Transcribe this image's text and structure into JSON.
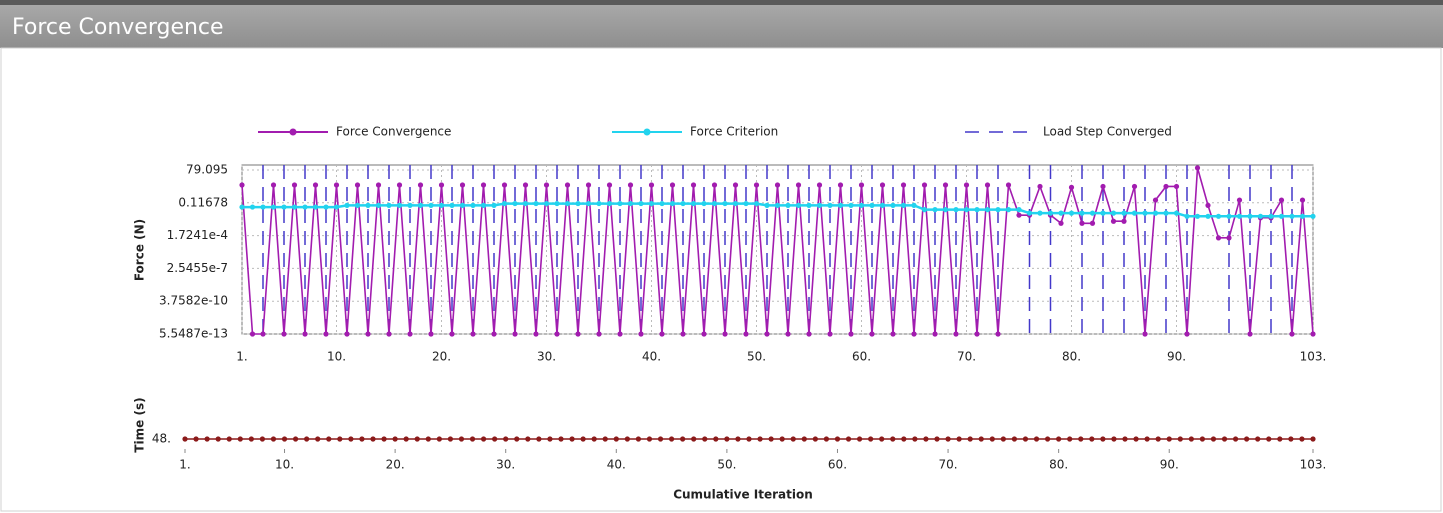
{
  "panel": {
    "title": "Force Convergence"
  },
  "chart_data": [
    {
      "type": "line",
      "y_label": "Force (N)",
      "log_y": true,
      "grid": true,
      "legend": "top",
      "x": [
        1,
        2,
        3,
        4,
        5,
        6,
        7,
        8,
        9,
        10,
        11,
        12,
        13,
        14,
        15,
        16,
        17,
        18,
        19,
        20,
        21,
        22,
        23,
        24,
        25,
        26,
        27,
        28,
        29,
        30,
        31,
        32,
        33,
        34,
        35,
        36,
        37,
        38,
        39,
        40,
        41,
        42,
        43,
        44,
        45,
        46,
        47,
        48,
        49,
        50,
        51,
        52,
        53,
        54,
        55,
        56,
        57,
        58,
        59,
        60,
        61,
        62,
        63,
        64,
        65,
        66,
        67,
        68,
        69,
        70,
        71,
        72,
        73,
        74,
        75,
        76,
        77,
        78,
        79,
        80,
        81,
        82,
        83,
        84,
        85,
        86,
        87,
        88,
        89,
        90,
        91,
        92,
        93,
        94,
        95,
        96,
        97,
        98,
        99,
        100,
        101,
        102,
        103
      ],
      "series": [
        {
          "name": "Force Convergence",
          "color": "#a21caf",
          "values": [
            4,
            5.5487e-13,
            5.5487e-13,
            4,
            5.5487e-13,
            4,
            5.5487e-13,
            4,
            5.5487e-13,
            4,
            5.5487e-13,
            4,
            5.5487e-13,
            4,
            5.5487e-13,
            4,
            5.5487e-13,
            4,
            5.5487e-13,
            4,
            5.5487e-13,
            4,
            5.5487e-13,
            4,
            5.5487e-13,
            4,
            5.5487e-13,
            4,
            5.5487e-13,
            4,
            5.5487e-13,
            4,
            5.5487e-13,
            4,
            5.5487e-13,
            4,
            5.5487e-13,
            4,
            5.5487e-13,
            4,
            5.5487e-13,
            4,
            5.5487e-13,
            4,
            5.5487e-13,
            4,
            5.5487e-13,
            4,
            5.5487e-13,
            4,
            5.5487e-13,
            4,
            5.5487e-13,
            4,
            5.5487e-13,
            4,
            5.5487e-13,
            4,
            5.5487e-13,
            4,
            5.5487e-13,
            4,
            5.5487e-13,
            4,
            5.5487e-13,
            4,
            5.5487e-13,
            4,
            5.5487e-13,
            4,
            5.5487e-13,
            4,
            5.5487e-13,
            4,
            0.01,
            0.01,
            3,
            0.01,
            0.002,
            2.5,
            0.002,
            0.002,
            3,
            0.003,
            0.003,
            3,
            5.5487e-13,
            0.2,
            3,
            3,
            5.5487e-13,
            120,
            0.07,
            0.00011,
            0.00011,
            0.2,
            5.5487e-13,
            0.006,
            0.006,
            0.2,
            5.5487e-13,
            0.2,
            5.5487e-13
          ]
        },
        {
          "name": "Force Criterion",
          "color": "#22d3ee",
          "values": [
            0.05,
            0.05,
            0.05,
            0.05,
            0.05,
            0.05,
            0.05,
            0.05,
            0.05,
            0.05,
            0.07,
            0.07,
            0.07,
            0.07,
            0.07,
            0.07,
            0.07,
            0.07,
            0.07,
            0.07,
            0.07,
            0.07,
            0.07,
            0.07,
            0.07,
            0.1,
            0.1,
            0.1,
            0.1,
            0.1,
            0.1,
            0.1,
            0.1,
            0.1,
            0.1,
            0.1,
            0.1,
            0.1,
            0.1,
            0.1,
            0.1,
            0.1,
            0.1,
            0.1,
            0.1,
            0.1,
            0.1,
            0.1,
            0.1,
            0.1,
            0.07,
            0.07,
            0.07,
            0.07,
            0.07,
            0.07,
            0.07,
            0.07,
            0.07,
            0.07,
            0.07,
            0.07,
            0.07,
            0.07,
            0.07,
            0.03,
            0.03,
            0.03,
            0.03,
            0.03,
            0.03,
            0.03,
            0.03,
            0.03,
            0.03,
            0.015,
            0.015,
            0.015,
            0.015,
            0.015,
            0.015,
            0.015,
            0.015,
            0.015,
            0.015,
            0.015,
            0.015,
            0.015,
            0.015,
            0.015,
            0.008,
            0.008,
            0.008,
            0.008,
            0.008,
            0.008,
            0.008,
            0.008,
            0.008,
            0.008,
            0.008,
            0.008,
            0.008
          ]
        }
      ],
      "load_steps": {
        "name": "Load Step Converged",
        "color": "#4338ca",
        "x": [
          3,
          5,
          7,
          9,
          11,
          13,
          15,
          17,
          19,
          21,
          23,
          25,
          27,
          29,
          31,
          33,
          35,
          37,
          39,
          41,
          43,
          45,
          47,
          49,
          51,
          53,
          55,
          57,
          59,
          61,
          63,
          65,
          67,
          69,
          71,
          73,
          76,
          78,
          81,
          83,
          85,
          87,
          89,
          91,
          95,
          97,
          99,
          101
        ]
      },
      "xlim": [
        1,
        103
      ],
      "xticks": [
        {
          "value": 1,
          "label": "1."
        },
        {
          "value": 10,
          "label": "10."
        },
        {
          "value": 20,
          "label": "20."
        },
        {
          "value": 30,
          "label": "30."
        },
        {
          "value": 40,
          "label": "40."
        },
        {
          "value": 50,
          "label": "50."
        },
        {
          "value": 60,
          "label": "60."
        },
        {
          "value": 70,
          "label": "70."
        },
        {
          "value": 80,
          "label": "80."
        },
        {
          "value": 90,
          "label": "90."
        },
        {
          "value": 103,
          "label": "103."
        }
      ],
      "ylim": [
        5.5487e-13,
        79.095
      ],
      "yticks": [
        79.095,
        0.11678,
        {
          "value": 0.00017241,
          "label": "1.7241e-4"
        },
        {
          "value": 2.5455e-07,
          "label": "2.5455e-7"
        },
        {
          "value": 3.7582e-10,
          "label": "3.7582e-10"
        },
        {
          "value": 5.5487e-13,
          "label": "5.5487e-13"
        }
      ]
    },
    {
      "type": "line",
      "y_label": "Time (s)",
      "x_label": "Cumulative Iteration",
      "x": [
        1,
        2,
        3,
        4,
        5,
        6,
        7,
        8,
        9,
        10,
        11,
        12,
        13,
        14,
        15,
        16,
        17,
        18,
        19,
        20,
        21,
        22,
        23,
        24,
        25,
        26,
        27,
        28,
        29,
        30,
        31,
        32,
        33,
        34,
        35,
        36,
        37,
        38,
        39,
        40,
        41,
        42,
        43,
        44,
        45,
        46,
        47,
        48,
        49,
        50,
        51,
        52,
        53,
        54,
        55,
        56,
        57,
        58,
        59,
        60,
        61,
        62,
        63,
        64,
        65,
        66,
        67,
        68,
        69,
        70,
        71,
        72,
        73,
        74,
        75,
        76,
        77,
        78,
        79,
        80,
        81,
        82,
        83,
        84,
        85,
        86,
        87,
        88,
        89,
        90,
        91,
        92,
        93,
        94,
        95,
        96,
        97,
        98,
        99,
        100,
        101,
        102,
        103
      ],
      "series": [
        {
          "color": "#8b1a1a",
          "values": [
            48,
            48,
            48,
            48,
            48,
            48,
            48,
            48,
            48,
            48,
            48,
            48,
            48,
            48,
            48,
            48,
            48,
            48,
            48,
            48,
            48,
            48,
            48,
            48,
            48,
            48,
            48,
            48,
            48,
            48,
            48,
            48,
            48,
            48,
            48,
            48,
            48,
            48,
            48,
            48,
            48,
            48,
            48,
            48,
            48,
            48,
            48,
            48,
            48,
            48,
            48,
            48,
            48,
            48,
            48,
            48,
            48,
            48,
            48,
            48,
            48,
            48,
            48,
            48,
            48,
            48,
            48,
            48,
            48,
            48,
            48,
            48,
            48,
            48,
            48,
            48,
            48,
            48,
            48,
            48,
            48,
            48,
            48,
            48,
            48,
            48,
            48,
            48,
            48,
            48,
            48,
            48,
            48,
            48,
            48,
            48,
            48,
            48,
            48,
            48,
            48,
            48,
            48
          ]
        }
      ],
      "xlim": [
        1,
        103
      ],
      "xticks": [
        {
          "value": 1,
          "label": "1."
        },
        {
          "value": 10,
          "label": "10."
        },
        {
          "value": 20,
          "label": "20."
        },
        {
          "value": 30,
          "label": "30."
        },
        {
          "value": 40,
          "label": "40."
        },
        {
          "value": 50,
          "label": "50."
        },
        {
          "value": 60,
          "label": "60."
        },
        {
          "value": 70,
          "label": "70."
        },
        {
          "value": 80,
          "label": "80."
        },
        {
          "value": 90,
          "label": "90."
        },
        {
          "value": 103,
          "label": "103."
        }
      ],
      "ylim": [
        47,
        49
      ],
      "yticks": [
        {
          "value": 48,
          "label": "48."
        }
      ]
    }
  ]
}
